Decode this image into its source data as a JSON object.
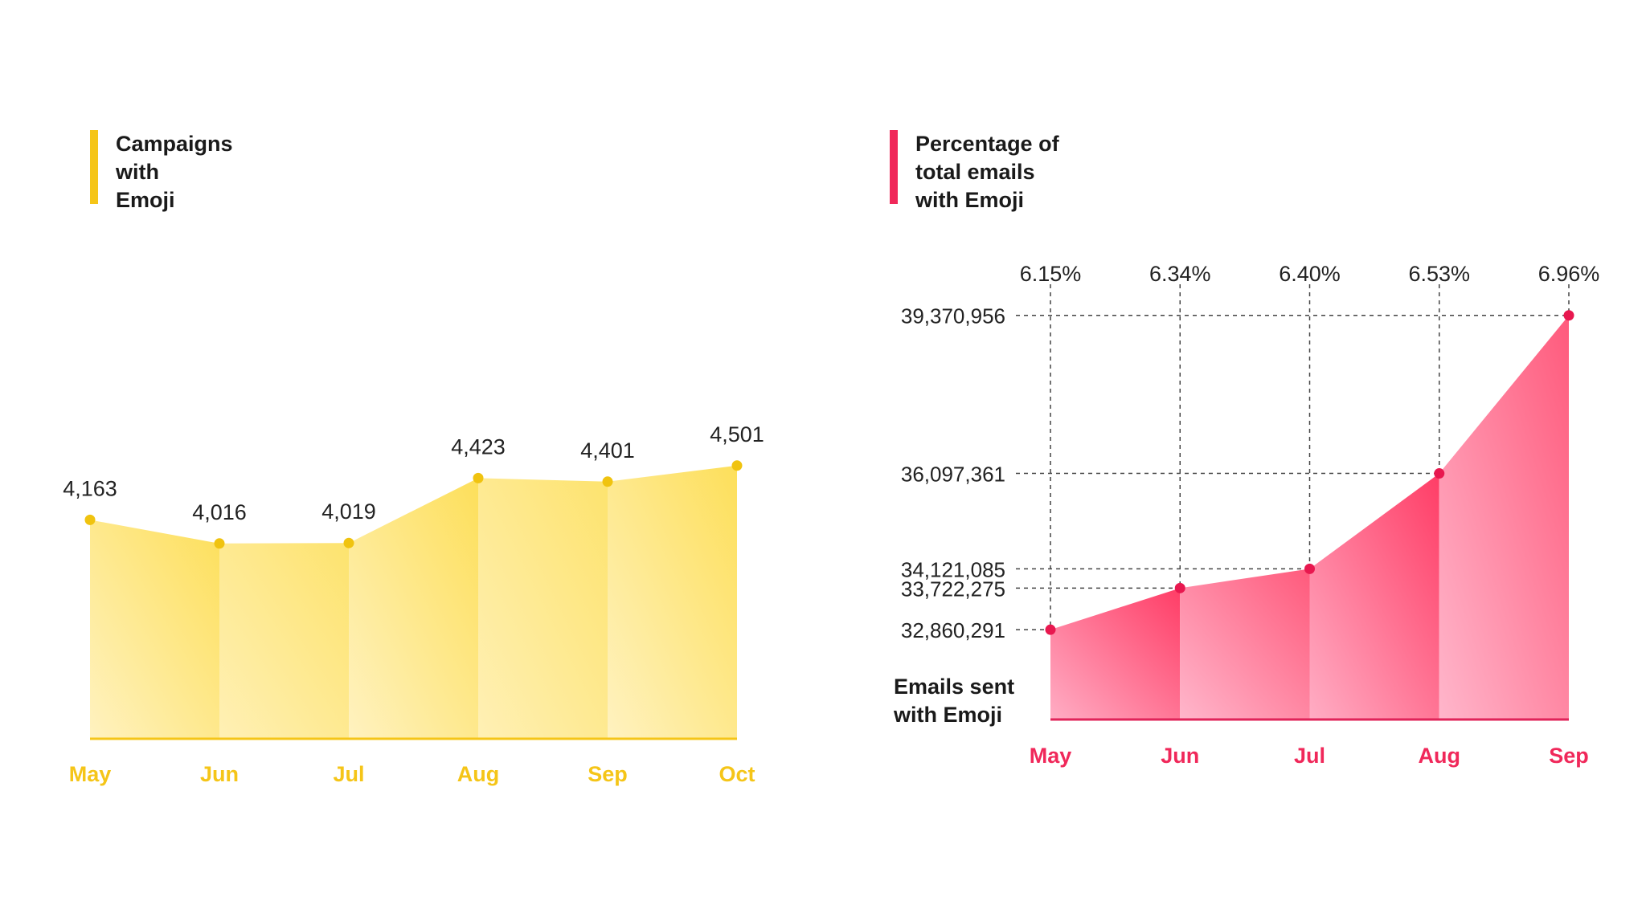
{
  "chart_data": [
    {
      "type": "area",
      "title_lines": [
        "Campaigns",
        "with",
        "Emoji"
      ],
      "categories": [
        "May",
        "Jun",
        "Jul",
        "Aug",
        "Sep",
        "Oct"
      ],
      "values": [
        4163,
        4016,
        4019,
        4423,
        4401,
        4501
      ],
      "value_labels": [
        "4,163",
        "4,016",
        "4,019",
        "4,423",
        "4,401",
        "4,501"
      ],
      "ylim": [
        2800,
        4800
      ],
      "color": "#f5c518",
      "grid": false
    },
    {
      "type": "area",
      "title_lines": [
        "Percentage of",
        "total emails",
        "with Emoji"
      ],
      "ylabel_lines": [
        "Emails sent",
        "with Emoji"
      ],
      "categories": [
        "May",
        "Jun",
        "Jul",
        "Aug",
        "Sep"
      ],
      "values": [
        32860291,
        33722275,
        34121085,
        36097361,
        39370956
      ],
      "value_labels": [
        "32,860,291",
        "33,722,275",
        "34,121,085",
        "36,097,361",
        "39,370,956"
      ],
      "percent_labels": [
        "6.15%",
        "6.34%",
        "6.40%",
        "6.53%",
        "6.96%"
      ],
      "ylim": [
        31000000,
        39400000
      ],
      "color": "#f0285a",
      "grid": "dashed guides"
    }
  ]
}
